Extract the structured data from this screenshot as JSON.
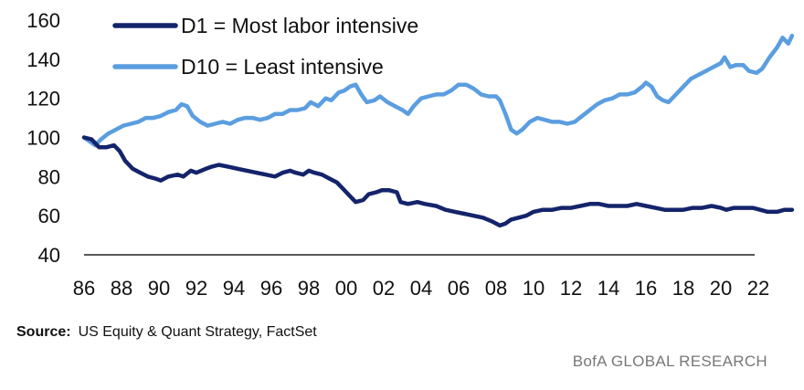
{
  "chart_data": {
    "type": "line",
    "title": "",
    "xlabel": "",
    "ylabel": "",
    "ylim": [
      40,
      160
    ],
    "xlim": [
      1986,
      2023.8
    ],
    "y_ticks": [
      "40",
      "60",
      "80",
      "100",
      "120",
      "140",
      "160"
    ],
    "x_ticks": [
      "86",
      "88",
      "90",
      "92",
      "94",
      "96",
      "98",
      "00",
      "02",
      "04",
      "06",
      "08",
      "10",
      "12",
      "14",
      "16",
      "18",
      "20",
      "22"
    ],
    "grid": false,
    "legend_position": "top-left",
    "series": [
      {
        "name": "D1 = Most labor intensive",
        "color": "#14246b",
        "points": [
          [
            1986.0,
            100
          ],
          [
            1986.4,
            99
          ],
          [
            1986.8,
            95
          ],
          [
            1987.2,
            95
          ],
          [
            1987.6,
            96
          ],
          [
            1987.9,
            93
          ],
          [
            1988.2,
            88
          ],
          [
            1988.6,
            84
          ],
          [
            1989.0,
            82
          ],
          [
            1989.4,
            80
          ],
          [
            1989.8,
            79
          ],
          [
            1990.1,
            78
          ],
          [
            1990.5,
            80
          ],
          [
            1991.0,
            81
          ],
          [
            1991.3,
            80
          ],
          [
            1991.7,
            83
          ],
          [
            1992.0,
            82
          ],
          [
            1992.5,
            84
          ],
          [
            1992.8,
            85
          ],
          [
            1993.2,
            86
          ],
          [
            1993.7,
            85
          ],
          [
            1994.2,
            84
          ],
          [
            1994.7,
            83
          ],
          [
            1995.2,
            82
          ],
          [
            1995.7,
            81
          ],
          [
            1996.2,
            80
          ],
          [
            1996.6,
            82
          ],
          [
            1997.0,
            83
          ],
          [
            1997.3,
            82
          ],
          [
            1997.7,
            81
          ],
          [
            1998.0,
            83
          ],
          [
            1998.3,
            82
          ],
          [
            1998.7,
            81
          ],
          [
            1999.1,
            79
          ],
          [
            1999.5,
            77
          ],
          [
            1999.9,
            73
          ],
          [
            2000.2,
            70
          ],
          [
            2000.5,
            67
          ],
          [
            2000.9,
            68
          ],
          [
            2001.2,
            71
          ],
          [
            2001.6,
            72
          ],
          [
            2001.9,
            73
          ],
          [
            2002.3,
            73
          ],
          [
            2002.7,
            72
          ],
          [
            2002.9,
            67
          ],
          [
            2003.3,
            66
          ],
          [
            2003.8,
            67
          ],
          [
            2004.2,
            66
          ],
          [
            2004.8,
            65
          ],
          [
            2005.3,
            63
          ],
          [
            2005.8,
            62
          ],
          [
            2006.3,
            61
          ],
          [
            2006.8,
            60
          ],
          [
            2007.3,
            59
          ],
          [
            2007.8,
            57
          ],
          [
            2008.2,
            55
          ],
          [
            2008.5,
            56
          ],
          [
            2008.8,
            58
          ],
          [
            2009.2,
            59
          ],
          [
            2009.6,
            60
          ],
          [
            2010.0,
            62
          ],
          [
            2010.5,
            63
          ],
          [
            2011.0,
            63
          ],
          [
            2011.5,
            64
          ],
          [
            2012.0,
            64
          ],
          [
            2012.5,
            65
          ],
          [
            2013.0,
            66
          ],
          [
            2013.5,
            66
          ],
          [
            2014.0,
            65
          ],
          [
            2014.5,
            65
          ],
          [
            2015.0,
            65
          ],
          [
            2015.5,
            66
          ],
          [
            2016.0,
            65
          ],
          [
            2016.5,
            64
          ],
          [
            2017.0,
            63
          ],
          [
            2017.5,
            63
          ],
          [
            2018.0,
            63
          ],
          [
            2018.5,
            64
          ],
          [
            2019.0,
            64
          ],
          [
            2019.5,
            65
          ],
          [
            2020.0,
            64
          ],
          [
            2020.3,
            63
          ],
          [
            2020.7,
            64
          ],
          [
            2021.2,
            64
          ],
          [
            2021.7,
            64
          ],
          [
            2022.1,
            63
          ],
          [
            2022.5,
            62
          ],
          [
            2023.0,
            62
          ],
          [
            2023.4,
            63
          ],
          [
            2023.8,
            63
          ]
        ]
      },
      {
        "name": "D10 = Least intensive",
        "color": "#5b9ee0",
        "points": [
          [
            1986.0,
            100
          ],
          [
            1986.3,
            98
          ],
          [
            1986.6,
            96
          ],
          [
            1986.9,
            99
          ],
          [
            1987.3,
            102
          ],
          [
            1987.7,
            104
          ],
          [
            1988.1,
            106
          ],
          [
            1988.5,
            107
          ],
          [
            1988.9,
            108
          ],
          [
            1989.3,
            110
          ],
          [
            1989.7,
            110
          ],
          [
            1990.1,
            111
          ],
          [
            1990.5,
            113
          ],
          [
            1990.9,
            114
          ],
          [
            1991.2,
            117
          ],
          [
            1991.5,
            116
          ],
          [
            1991.8,
            111
          ],
          [
            1992.2,
            108
          ],
          [
            1992.6,
            106
          ],
          [
            1993.0,
            107
          ],
          [
            1993.4,
            108
          ],
          [
            1993.8,
            107
          ],
          [
            1994.2,
            109
          ],
          [
            1994.6,
            110
          ],
          [
            1995.0,
            110
          ],
          [
            1995.4,
            109
          ],
          [
            1995.8,
            110
          ],
          [
            1996.2,
            112
          ],
          [
            1996.6,
            112
          ],
          [
            1997.0,
            114
          ],
          [
            1997.4,
            114
          ],
          [
            1997.8,
            115
          ],
          [
            1998.1,
            118
          ],
          [
            1998.5,
            116
          ],
          [
            1998.9,
            120
          ],
          [
            1999.2,
            119
          ],
          [
            1999.6,
            123
          ],
          [
            1999.9,
            124
          ],
          [
            2000.2,
            126
          ],
          [
            2000.5,
            127
          ],
          [
            2000.8,
            122
          ],
          [
            2001.1,
            118
          ],
          [
            2001.5,
            119
          ],
          [
            2001.8,
            121
          ],
          [
            2002.2,
            118
          ],
          [
            2002.6,
            116
          ],
          [
            2003.0,
            114
          ],
          [
            2003.3,
            112
          ],
          [
            2003.6,
            116
          ],
          [
            2004.0,
            120
          ],
          [
            2004.4,
            121
          ],
          [
            2004.8,
            122
          ],
          [
            2005.2,
            122
          ],
          [
            2005.6,
            124
          ],
          [
            2006.0,
            127
          ],
          [
            2006.4,
            127
          ],
          [
            2006.8,
            125
          ],
          [
            2007.2,
            122
          ],
          [
            2007.6,
            121
          ],
          [
            2008.0,
            121
          ],
          [
            2008.2,
            119
          ],
          [
            2008.5,
            112
          ],
          [
            2008.8,
            104
          ],
          [
            2009.1,
            102
          ],
          [
            2009.4,
            104
          ],
          [
            2009.8,
            108
          ],
          [
            2010.2,
            110
          ],
          [
            2010.6,
            109
          ],
          [
            2011.0,
            108
          ],
          [
            2011.4,
            108
          ],
          [
            2011.8,
            107
          ],
          [
            2012.2,
            108
          ],
          [
            2012.6,
            111
          ],
          [
            2013.0,
            114
          ],
          [
            2013.4,
            117
          ],
          [
            2013.8,
            119
          ],
          [
            2014.2,
            120
          ],
          [
            2014.6,
            122
          ],
          [
            2015.0,
            122
          ],
          [
            2015.4,
            123
          ],
          [
            2015.8,
            126
          ],
          [
            2016.0,
            128
          ],
          [
            2016.3,
            126
          ],
          [
            2016.6,
            121
          ],
          [
            2016.9,
            119
          ],
          [
            2017.2,
            118
          ],
          [
            2017.6,
            122
          ],
          [
            2018.0,
            126
          ],
          [
            2018.4,
            130
          ],
          [
            2018.8,
            132
          ],
          [
            2019.2,
            134
          ],
          [
            2019.6,
            136
          ],
          [
            2020.0,
            138
          ],
          [
            2020.2,
            141
          ],
          [
            2020.5,
            136
          ],
          [
            2020.8,
            137
          ],
          [
            2021.2,
            137
          ],
          [
            2021.5,
            134
          ],
          [
            2021.9,
            133
          ],
          [
            2022.2,
            135
          ],
          [
            2022.6,
            141
          ],
          [
            2023.0,
            146
          ],
          [
            2023.3,
            151
          ],
          [
            2023.6,
            148
          ],
          [
            2023.8,
            152
          ]
        ]
      }
    ]
  },
  "footer": {
    "source_label": "Source:",
    "source_text": "US Equity & Quant Strategy, FactSet",
    "brand": "BofA GLOBAL RESEARCH"
  }
}
